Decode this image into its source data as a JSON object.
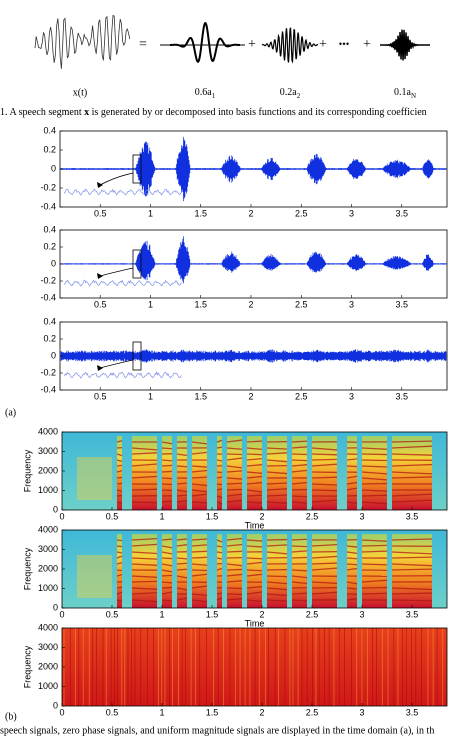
{
  "equation": {
    "lhs": "x(t)",
    "equals": "=",
    "plus": "+",
    "ellipsis": "•••",
    "terms": [
      {
        "coef": "0.6a",
        "sub": "1"
      },
      {
        "coef": "0.2a",
        "sub": "2"
      },
      {
        "coef": "0.1a",
        "sub": "N"
      }
    ]
  },
  "caption_top": [
    "1. A speech segment ",
    "x",
    " is generated by or decomposed into basis functions and its corresponding coefficien"
  ],
  "waveforms": {
    "label": "(a)",
    "xlim": [
      0.1,
      3.95
    ],
    "ylim": [
      -0.4,
      0.4
    ],
    "xticks": [
      0.5,
      1,
      1.5,
      2,
      2.5,
      3,
      3.5
    ],
    "yticks": [
      0.4,
      0.2,
      0,
      -0.2,
      -0.4
    ]
  },
  "spectrograms": {
    "label": "(b)",
    "xlabel": "Time",
    "ylabel": "Frequency",
    "xlim": [
      0,
      3.85
    ],
    "ylim": [
      0,
      4000
    ],
    "xticks": [
      0,
      0.5,
      1,
      1.5,
      2,
      2.5,
      3,
      3.5
    ],
    "yticks": [
      0,
      1000,
      2000,
      3000,
      4000
    ]
  },
  "caption_bottom": "speech signals, zero phase signals, and uniform magnitude signals are displayed in the time domain (a), in th"
}
